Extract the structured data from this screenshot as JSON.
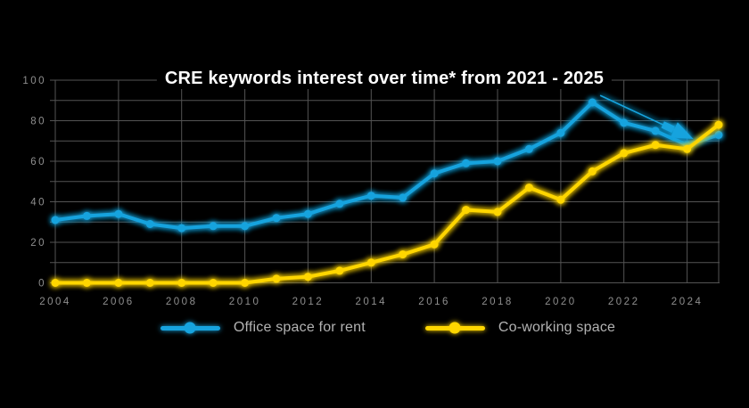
{
  "title": "CRE keywords interest over time* from 2021 - 2025",
  "colors": {
    "background": "#000000",
    "office_blue": "#17a3de",
    "coworking_yellow": "#ffd600",
    "gridline": "#545454",
    "axis_label": "#8f8f8f",
    "legend_label": "#b3b3b3",
    "title_text": "#ffffff"
  },
  "chart_data": {
    "type": "line",
    "title": "CRE keywords interest over time* from 2021 - 2025",
    "x": [
      2004,
      2005,
      2006,
      2007,
      2008,
      2009,
      2010,
      2011,
      2012,
      2013,
      2014,
      2015,
      2016,
      2017,
      2018,
      2019,
      2020,
      2021,
      2022,
      2023,
      2024,
      2025
    ],
    "x_ticks": [
      2004,
      2006,
      2008,
      2010,
      2012,
      2014,
      2016,
      2018,
      2020,
      2022,
      2024
    ],
    "x_tick_labels": [
      "2004",
      "2006",
      "2008",
      "2010",
      "2012",
      "2014",
      "2016",
      "2018",
      "2020",
      "2022",
      "2024"
    ],
    "ylim": [
      0,
      100
    ],
    "y_ticks": [
      0,
      20,
      40,
      60,
      80,
      100
    ],
    "y_tick_labels": [
      "0",
      "20",
      "40",
      "60",
      "80",
      "100"
    ],
    "grid": true,
    "grid_step": 10,
    "legend_position": "bottom",
    "series": [
      {
        "name": "Office space for rent",
        "key": "office-space-for-rent",
        "color": "#17a3de",
        "values": [
          31,
          33,
          34,
          29,
          27,
          28,
          28,
          32,
          34,
          39,
          43,
          42,
          54,
          59,
          60,
          66,
          74,
          89,
          79,
          75,
          68,
          73
        ]
      },
      {
        "name": "Co-working space",
        "key": "co-working-space",
        "color": "#ffd600",
        "values": [
          0,
          0,
          0,
          0,
          0,
          0,
          0,
          2,
          3,
          6,
          10,
          14,
          19,
          36,
          35,
          47,
          41,
          55,
          64,
          68,
          66,
          78
        ]
      }
    ],
    "annotation": {
      "type": "arrow",
      "color": "#17a3de",
      "from": [
        2021.25,
        92.5
      ],
      "to": [
        2024.2,
        71.0
      ]
    }
  },
  "legend": {
    "items": [
      {
        "label": "Office space for rent"
      },
      {
        "label": "Co-working space"
      }
    ]
  }
}
